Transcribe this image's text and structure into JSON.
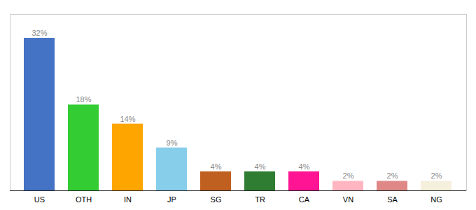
{
  "chart_data": {
    "type": "bar",
    "categories": [
      "US",
      "OTH",
      "IN",
      "JP",
      "SG",
      "TR",
      "CA",
      "VN",
      "SA",
      "NG"
    ],
    "values": [
      32,
      18,
      14,
      9,
      4,
      4,
      4,
      2,
      2,
      2
    ],
    "value_labels": [
      "32%",
      "18%",
      "14%",
      "9%",
      "4%",
      "4%",
      "4%",
      "2%",
      "2%",
      "2%"
    ],
    "colors": [
      "#4472C4",
      "#33CC33",
      "#FFA500",
      "#87CEEB",
      "#C06020",
      "#2E7D32",
      "#FF1493",
      "#FFB6C1",
      "#E08888",
      "#F5F0DC"
    ],
    "ylim": [
      0,
      37
    ],
    "data_labels": true,
    "tick_labels": "x",
    "grid": false
  }
}
